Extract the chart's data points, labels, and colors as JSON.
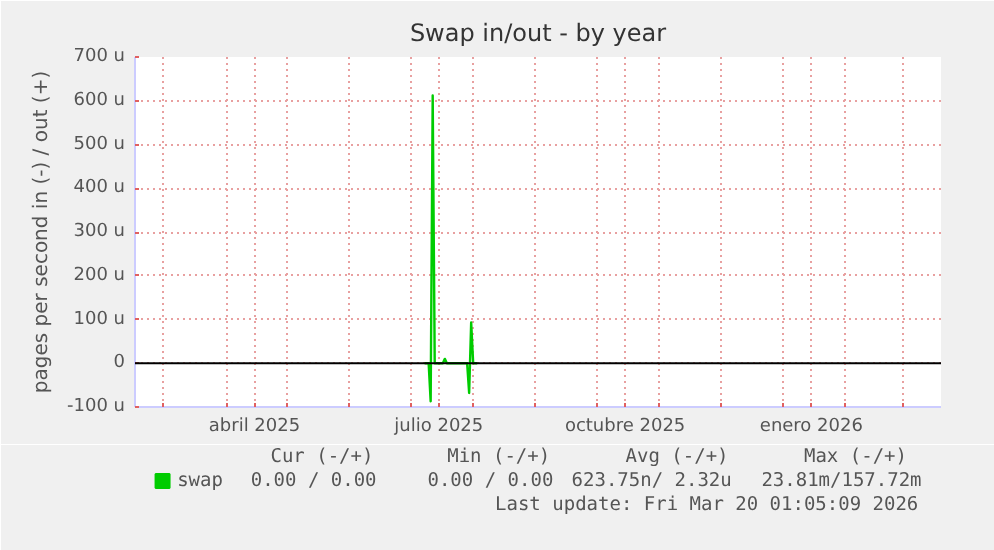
{
  "chart_data": {
    "type": "line",
    "title": "Swap in/out - by year",
    "ylabel": "pages per second in (-) / out (+)",
    "x": [
      "2025-07-08",
      "2025-07-10",
      "2025-07-11",
      "2025-07-12",
      "2025-07-13",
      "2025-07-17",
      "2025-07-18",
      "2025-07-19",
      "2025-07-29",
      "2025-07-30",
      "2025-07-31",
      "2025-08-01",
      "2025-08-03"
    ],
    "series": [
      {
        "name": "swap",
        "color": "#00cc00",
        "values": [
          0,
          0,
          -87,
          612,
          0,
          0,
          10,
          0,
          0,
          -68,
          93,
          0,
          0
        ]
      }
    ],
    "xlim": [
      "2025-02-15",
      "2026-03-20"
    ],
    "xticks": [
      {
        "value": "2025-03-01",
        "label": null
      },
      {
        "value": "2025-04-01",
        "label": null
      },
      {
        "value": "2025-04-15",
        "label": "abril 2025"
      },
      {
        "value": "2025-05-01",
        "label": null
      },
      {
        "value": "2025-06-01",
        "label": null
      },
      {
        "value": "2025-07-01",
        "label": null
      },
      {
        "value": "2025-07-15",
        "label": "julio 2025"
      },
      {
        "value": "2025-08-01",
        "label": null
      },
      {
        "value": "2025-09-01",
        "label": null
      },
      {
        "value": "2025-10-01",
        "label": null
      },
      {
        "value": "2025-10-15",
        "label": "octubre 2025"
      },
      {
        "value": "2025-11-01",
        "label": null
      },
      {
        "value": "2025-12-01",
        "label": null
      },
      {
        "value": "2026-01-01",
        "label": null
      },
      {
        "value": "2026-01-15",
        "label": "enero 2026"
      },
      {
        "value": "2026-02-01",
        "label": null
      },
      {
        "value": "2026-03-01",
        "label": null
      }
    ],
    "ylim": [
      -100,
      700
    ],
    "yticks": [
      {
        "value": -100,
        "label": "-100 u"
      },
      0,
      {
        "value": 100,
        "label": "100 u"
      },
      {
        "value": 200,
        "label": "200 u"
      },
      {
        "value": 300,
        "label": "300 u"
      },
      {
        "value": 400,
        "label": "400 u"
      },
      {
        "value": 500,
        "label": "500 u"
      },
      {
        "value": 600,
        "label": "600 u"
      },
      {
        "value": 700,
        "label": "700 u"
      }
    ],
    "ref_lines": [
      {
        "axis": "y",
        "value": 0,
        "color": "#000000"
      }
    ],
    "grid": true,
    "legend": "bottom",
    "marker": "none",
    "line_style": "solid",
    "annotations": [
      "Cur (-/+)",
      "Min (-/+)",
      "Avg (-/+)",
      "Max (-/+)",
      "0.00 /  0.00",
      "0.00 /  0.00",
      "623.75n/  2.32u",
      "23.81m/157.72m",
      "Last update: Fri Mar 20 01:05:09 2026"
    ]
  }
}
